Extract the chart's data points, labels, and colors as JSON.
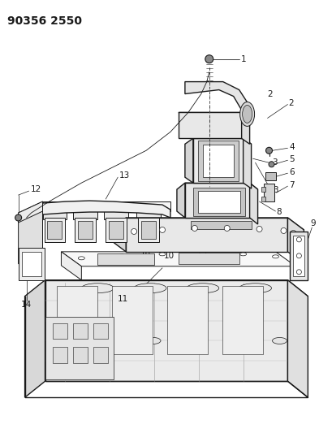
{
  "title": "90356 2550",
  "bg_color": "#ffffff",
  "line_color": "#1a1a1a",
  "label_color": "#1a1a1a",
  "title_fontsize": 10,
  "label_fontsize": 7.5,
  "fig_width": 3.93,
  "fig_height": 5.33,
  "dpi": 100
}
